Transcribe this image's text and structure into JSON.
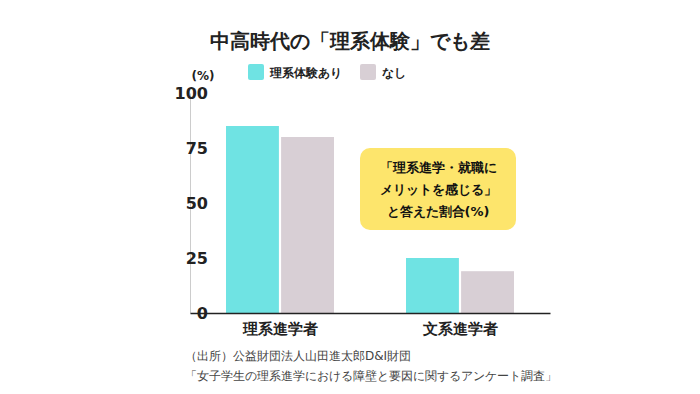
{
  "chart_data": {
    "type": "bar",
    "title": "中高時代の「理系体験」でも差",
    "y_label": "(%)",
    "categories": [
      "理系進学者",
      "文系進学者"
    ],
    "series": [
      {
        "name": "理系体験あり",
        "color": "#6fe3e3",
        "values": [
          85,
          25
        ]
      },
      {
        "name": "なし",
        "color": "#d8cfd5",
        "values": [
          80,
          19
        ]
      }
    ],
    "annotation": "「理系進学・就職に\nメリットを感じる」\nと答えた割合(%)",
    "source": [
      "（出所）公益財団法人山田進太郎D&I財団",
      "「女子学生の理系進学における障壁と要因に関するアンケート調査」"
    ],
    "ylim": [
      0,
      100
    ],
    "yticks": [
      0,
      25,
      50,
      75,
      100
    ],
    "grid": false,
    "legend": "top"
  }
}
